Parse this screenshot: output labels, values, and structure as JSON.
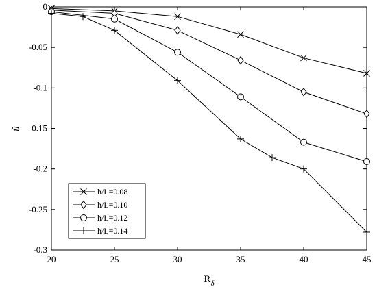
{
  "chart_data": {
    "type": "line",
    "title": "",
    "xlabel": "R",
    "xlabel_sub": "δ",
    "ylabel": "û",
    "xlim": [
      20,
      45
    ],
    "ylim": [
      -0.3,
      0
    ],
    "xticks": [
      20,
      25,
      30,
      35,
      40,
      45
    ],
    "xtick_labels": [
      "20",
      "25",
      "30",
      "35",
      "40",
      "45"
    ],
    "yticks": [
      0,
      -0.05,
      -0.1,
      -0.15,
      -0.2,
      -0.25,
      -0.3
    ],
    "ytick_labels": [
      "0",
      "-0.05",
      "-0.1",
      "-0.15",
      "-0.2",
      "-0.25",
      "-0.3"
    ],
    "grid": false,
    "legend_position": "bottom-left",
    "series": [
      {
        "name": "h/L=0.08",
        "marker": "x",
        "x": [
          20,
          25,
          30,
          35,
          40,
          45
        ],
        "y": [
          -0.002,
          -0.005,
          -0.012,
          -0.034,
          -0.063,
          -0.082
        ]
      },
      {
        "name": "h/L=0.10",
        "marker": "diamond",
        "x": [
          20,
          25,
          30,
          35,
          40,
          45
        ],
        "y": [
          -0.004,
          -0.008,
          -0.029,
          -0.066,
          -0.105,
          -0.132
        ]
      },
      {
        "name": "h/L=0.12",
        "marker": "circle",
        "x": [
          20,
          25,
          30,
          35,
          40,
          45
        ],
        "y": [
          -0.006,
          -0.015,
          -0.056,
          -0.111,
          -0.167,
          -0.191
        ]
      },
      {
        "name": "h/L=0.14",
        "marker": "plus",
        "x": [
          20,
          22.5,
          25,
          30,
          35,
          37.5,
          40,
          45
        ],
        "y": [
          -0.008,
          -0.012,
          -0.029,
          -0.091,
          -0.163,
          -0.186,
          -0.2,
          -0.278
        ]
      }
    ],
    "colors": {
      "line": "#000000",
      "axes": "#000000",
      "background": "#ffffff"
    }
  }
}
